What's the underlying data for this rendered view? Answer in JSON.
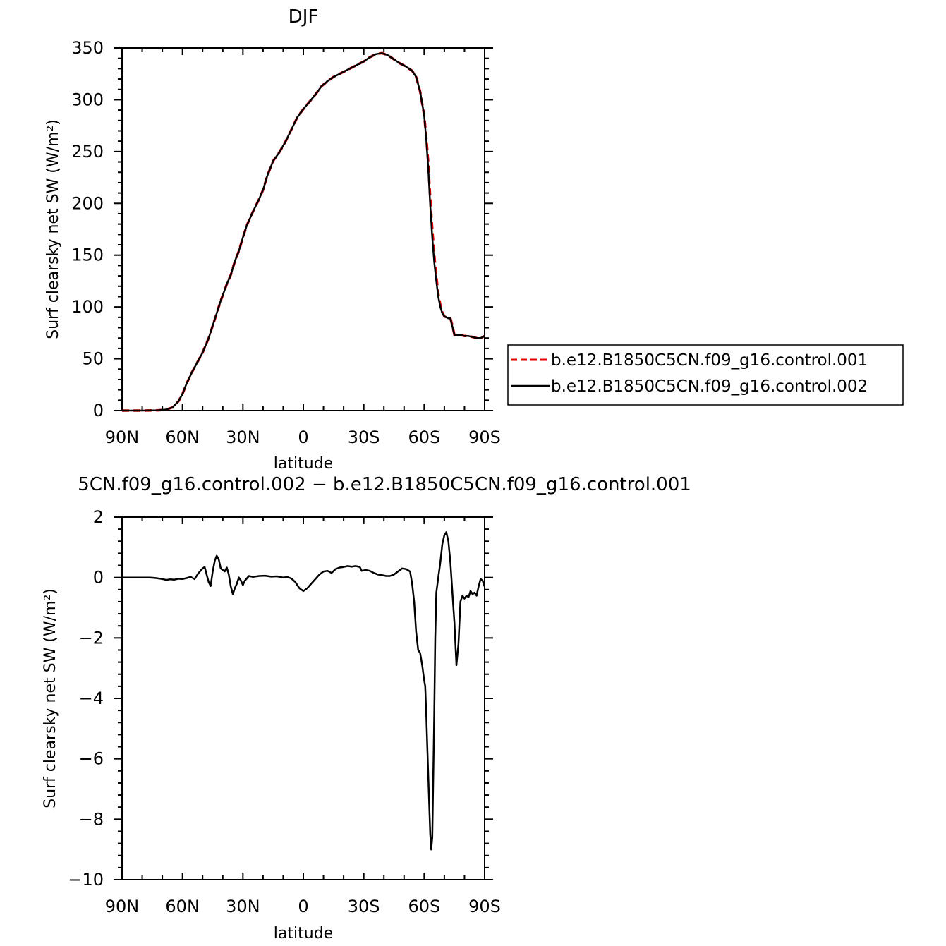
{
  "chart_data": [
    {
      "type": "line",
      "title": "DJF",
      "xlabel": "latitude",
      "ylabel": "Surf clearsky net SW (W/m²)",
      "xlim": [
        -90,
        90
      ],
      "ylim": [
        0,
        350
      ],
      "xticks": [
        -90,
        -60,
        -30,
        0,
        30,
        60,
        90
      ],
      "xtick_labels": [
        "90N",
        "60N",
        "30N",
        "0",
        "30S",
        "60S",
        "90S"
      ],
      "yticks": [
        0,
        50,
        100,
        150,
        200,
        250,
        300,
        350
      ],
      "ytick_labels": [
        "0",
        "50",
        "100",
        "150",
        "200",
        "250",
        "300",
        "350"
      ],
      "legend_position": "right",
      "series": [
        {
          "name": "b.e12.B1850C5CN.f09_g16.control.001",
          "color": "#e00000",
          "dash": "dashed",
          "points": [
            [
              -90,
              0
            ],
            [
              -80,
              0
            ],
            [
              -72,
              0.3
            ],
            [
              -68,
              1
            ],
            [
              -65,
              3
            ],
            [
              -62,
              9
            ],
            [
              -60,
              16
            ],
            [
              -58,
              26
            ],
            [
              -55,
              38
            ],
            [
              -50,
              56
            ],
            [
              -47,
              70
            ],
            [
              -44,
              88
            ],
            [
              -41,
              106
            ],
            [
              -38,
              122
            ],
            [
              -36,
              131
            ],
            [
              -34,
              144
            ],
            [
              -32,
              154
            ],
            [
              -30,
              167
            ],
            [
              -28,
              179
            ],
            [
              -25,
              192
            ],
            [
              -22,
              204
            ],
            [
              -20,
              213
            ],
            [
              -18,
              226
            ],
            [
              -15,
              241
            ],
            [
              -12,
              249
            ],
            [
              -9,
              259
            ],
            [
              -6,
              271
            ],
            [
              -3,
              283
            ],
            [
              0,
              291
            ],
            [
              3,
              298
            ],
            [
              6,
              305
            ],
            [
              9,
              313
            ],
            [
              12,
              318
            ],
            [
              15,
              322
            ],
            [
              18,
              325
            ],
            [
              21,
              328
            ],
            [
              24,
              331
            ],
            [
              27,
              334
            ],
            [
              30,
              337
            ],
            [
              33,
              341
            ],
            [
              36,
              344
            ],
            [
              39,
              345
            ],
            [
              42,
              343
            ],
            [
              45,
              339
            ],
            [
              48,
              335
            ],
            [
              51,
              332
            ],
            [
              54,
              328
            ],
            [
              56,
              322
            ],
            [
              58,
              308
            ],
            [
              60,
              285
            ],
            [
              61,
              265
            ],
            [
              62,
              240
            ],
            [
              63,
              205
            ],
            [
              64,
              175
            ],
            [
              65,
              150
            ],
            [
              66,
              130
            ],
            [
              67,
              113
            ],
            [
              68,
              102
            ],
            [
              69,
              95
            ],
            [
              70,
              91
            ],
            [
              72,
              89
            ],
            [
              73,
              89
            ],
            [
              74,
              82
            ],
            [
              75,
              73
            ],
            [
              78,
              73
            ],
            [
              80,
              72
            ],
            [
              82,
              72
            ],
            [
              84,
              71
            ],
            [
              86,
              70
            ],
            [
              88,
              70
            ],
            [
              90,
              72
            ]
          ]
        },
        {
          "name": "b.e12.B1850C5CN.f09_g16.control.002",
          "color": "#000000",
          "dash": "solid",
          "points": [
            [
              -90,
              0
            ],
            [
              -80,
              0
            ],
            [
              -72,
              0.3
            ],
            [
              -68,
              1
            ],
            [
              -65,
              3
            ],
            [
              -62,
              9
            ],
            [
              -60,
              16
            ],
            [
              -58,
              26
            ],
            [
              -55,
              38
            ],
            [
              -50,
              56
            ],
            [
              -47,
              70
            ],
            [
              -44,
              88
            ],
            [
              -41,
              106
            ],
            [
              -38,
              122
            ],
            [
              -36,
              131
            ],
            [
              -34,
              144
            ],
            [
              -32,
              154
            ],
            [
              -30,
              167
            ],
            [
              -28,
              179
            ],
            [
              -25,
              192
            ],
            [
              -22,
              204
            ],
            [
              -20,
              213
            ],
            [
              -18,
              226
            ],
            [
              -15,
              241
            ],
            [
              -12,
              249
            ],
            [
              -9,
              259
            ],
            [
              -6,
              271
            ],
            [
              -3,
              283
            ],
            [
              0,
              291
            ],
            [
              3,
              298
            ],
            [
              6,
              305
            ],
            [
              9,
              313
            ],
            [
              12,
              318
            ],
            [
              15,
              322
            ],
            [
              18,
              325
            ],
            [
              21,
              328
            ],
            [
              24,
              331
            ],
            [
              27,
              334
            ],
            [
              30,
              337
            ],
            [
              33,
              341
            ],
            [
              36,
              344
            ],
            [
              39,
              345
            ],
            [
              42,
              343
            ],
            [
              45,
              339
            ],
            [
              48,
              335
            ],
            [
              51,
              332
            ],
            [
              54,
              328
            ],
            [
              56,
              322
            ],
            [
              58,
              308
            ],
            [
              60,
              285
            ],
            [
              61,
              262
            ],
            [
              62,
              235
            ],
            [
              63,
              198
            ],
            [
              64,
              167
            ],
            [
              65,
              143
            ],
            [
              66,
              125
            ],
            [
              67,
              110
            ],
            [
              68,
              100
            ],
            [
              69,
              94
            ],
            [
              70,
              91
            ],
            [
              72,
              89
            ],
            [
              73,
              89
            ],
            [
              74,
              81
            ],
            [
              75,
              73
            ],
            [
              78,
              73
            ],
            [
              80,
              72
            ],
            [
              82,
              72
            ],
            [
              84,
              71
            ],
            [
              86,
              70
            ],
            [
              88,
              70
            ],
            [
              90,
              72
            ]
          ]
        }
      ]
    },
    {
      "type": "line",
      "title": "5CN.f09_g16.control.002 − b.e12.B1850C5CN.f09_g16.control.001",
      "xlabel": "latitude",
      "ylabel": "Surf clearsky net SW (W/m²)",
      "xlim": [
        -90,
        90
      ],
      "ylim": [
        -10,
        2
      ],
      "xticks": [
        -90,
        -60,
        -30,
        0,
        30,
        60,
        90
      ],
      "xtick_labels": [
        "90N",
        "60N",
        "30N",
        "0",
        "30S",
        "60S",
        "90S"
      ],
      "yticks": [
        -10,
        -8,
        -6,
        -4,
        -2,
        0,
        2
      ],
      "ytick_labels": [
        "−10",
        "−8",
        "−6",
        "−4",
        "−2",
        "0",
        "2"
      ],
      "series": [
        {
          "name": "",
          "color": "#000000",
          "dash": "solid",
          "points": [
            [
              -90,
              0
            ],
            [
              -80,
              0
            ],
            [
              -76,
              0
            ],
            [
              -73,
              -0.02
            ],
            [
              -70,
              -0.05
            ],
            [
              -68,
              -0.08
            ],
            [
              -66,
              -0.06
            ],
            [
              -64,
              -0.07
            ],
            [
              -62,
              -0.04
            ],
            [
              -60,
              -0.05
            ],
            [
              -58,
              -0.02
            ],
            [
              -56,
              0.02
            ],
            [
              -54,
              -0.05
            ],
            [
              -52,
              0.15
            ],
            [
              -50,
              0.3
            ],
            [
              -49,
              0.35
            ],
            [
              -48,
              0.1
            ],
            [
              -47,
              -0.15
            ],
            [
              -46,
              -0.28
            ],
            [
              -45,
              0.2
            ],
            [
              -44,
              0.55
            ],
            [
              -43,
              0.72
            ],
            [
              -42,
              0.6
            ],
            [
              -41,
              0.3
            ],
            [
              -40,
              0.25
            ],
            [
              -39,
              0.2
            ],
            [
              -38,
              0.33
            ],
            [
              -37,
              0.1
            ],
            [
              -36,
              -0.3
            ],
            [
              -35,
              -0.55
            ],
            [
              -34,
              -0.35
            ],
            [
              -33,
              -0.2
            ],
            [
              -32,
              0
            ],
            [
              -31,
              -0.1
            ],
            [
              -30,
              -0.25
            ],
            [
              -29,
              -0.1
            ],
            [
              -27,
              0.05
            ],
            [
              -25,
              0.02
            ],
            [
              -22,
              0.05
            ],
            [
              -19,
              0.06
            ],
            [
              -16,
              0.03
            ],
            [
              -13,
              0.04
            ],
            [
              -10,
              0
            ],
            [
              -8,
              0.02
            ],
            [
              -6,
              -0.03
            ],
            [
              -4,
              -0.15
            ],
            [
              -2,
              -0.35
            ],
            [
              0,
              -0.45
            ],
            [
              2,
              -0.35
            ],
            [
              4,
              -0.2
            ],
            [
              6,
              -0.05
            ],
            [
              8,
              0.1
            ],
            [
              10,
              0.2
            ],
            [
              12,
              0.22
            ],
            [
              14,
              0.15
            ],
            [
              16,
              0.28
            ],
            [
              18,
              0.33
            ],
            [
              20,
              0.35
            ],
            [
              22,
              0.38
            ],
            [
              24,
              0.36
            ],
            [
              26,
              0.38
            ],
            [
              28,
              0.35
            ],
            [
              29,
              0.22
            ],
            [
              31,
              0.25
            ],
            [
              33,
              0.22
            ],
            [
              35,
              0.15
            ],
            [
              37,
              0.1
            ],
            [
              39,
              0.08
            ],
            [
              41,
              0.05
            ],
            [
              43,
              0.05
            ],
            [
              45,
              0.1
            ],
            [
              47,
              0.2
            ],
            [
              49,
              0.3
            ],
            [
              51,
              0.28
            ],
            [
              53,
              0.2
            ],
            [
              54,
              -0.2
            ],
            [
              55,
              -0.8
            ],
            [
              56,
              -1.8
            ],
            [
              57,
              -2.4
            ],
            [
              58,
              -2.5
            ],
            [
              59,
              -2.9
            ],
            [
              60,
              -3.4
            ],
            [
              60.5,
              -3.6
            ],
            [
              61,
              -4.5
            ],
            [
              62,
              -6.5
            ],
            [
              63,
              -8.5
            ],
            [
              63.5,
              -9.0
            ],
            [
              64,
              -8.6
            ],
            [
              65,
              -4.5
            ],
            [
              65.5,
              -2
            ],
            [
              66,
              -0.5
            ],
            [
              67,
              0
            ],
            [
              68,
              0.5
            ],
            [
              69,
              1.1
            ],
            [
              70,
              1.4
            ],
            [
              71,
              1.5
            ],
            [
              72,
              1.2
            ],
            [
              73,
              0.5
            ],
            [
              74,
              -0.5
            ],
            [
              75,
              -1.5
            ],
            [
              76,
              -2.9
            ],
            [
              77,
              -2.2
            ],
            [
              78,
              -0.8
            ],
            [
              79,
              -0.6
            ],
            [
              80,
              -0.7
            ],
            [
              81,
              -0.6
            ],
            [
              82,
              -0.65
            ],
            [
              83,
              -0.45
            ],
            [
              84,
              -0.55
            ],
            [
              85,
              -0.5
            ],
            [
              86,
              -0.6
            ],
            [
              87,
              -0.3
            ],
            [
              88,
              -0.05
            ],
            [
              89,
              -0.1
            ],
            [
              90,
              -0.3
            ]
          ]
        }
      ]
    }
  ]
}
